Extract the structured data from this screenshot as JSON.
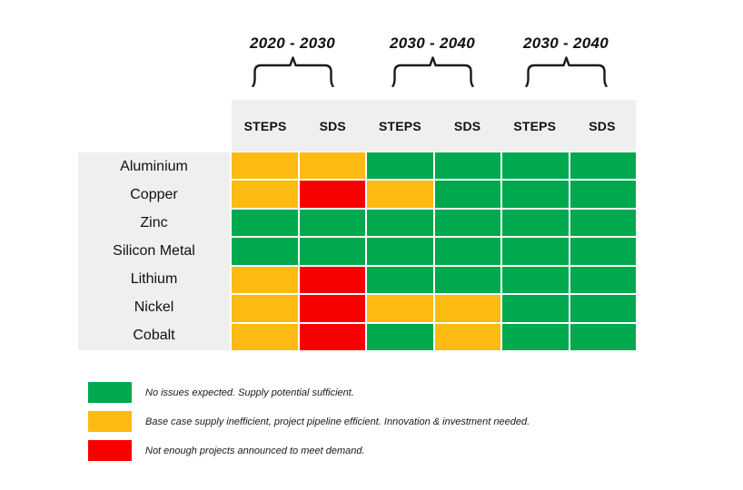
{
  "colors": {
    "green": "#00A94E",
    "yellow": "#FDBA12",
    "red": "#F80000",
    "band_gray": "#EFEFEF",
    "text": "#111111"
  },
  "period_headers": [
    "2020 - 2030",
    "2030 - 2040",
    "2030 - 2040"
  ],
  "scenario_headers": [
    "STEPS",
    "SDS",
    "STEPS",
    "SDS",
    "STEPS",
    "SDS"
  ],
  "table": {
    "rows": [
      {
        "label": "Aluminium",
        "cells": [
          "yellow",
          "yellow",
          "green",
          "green",
          "green",
          "green"
        ]
      },
      {
        "label": "Copper",
        "cells": [
          "yellow",
          "red",
          "yellow",
          "green",
          "green",
          "green"
        ]
      },
      {
        "label": "Zinc",
        "cells": [
          "green",
          "green",
          "green",
          "green",
          "green",
          "green"
        ]
      },
      {
        "label": "Silicon Metal",
        "cells": [
          "green",
          "green",
          "green",
          "green",
          "green",
          "green"
        ]
      },
      {
        "label": "Lithium",
        "cells": [
          "yellow",
          "red",
          "green",
          "green",
          "green",
          "green"
        ]
      },
      {
        "label": "Nickel",
        "cells": [
          "yellow",
          "red",
          "yellow",
          "yellow",
          "green",
          "green"
        ]
      },
      {
        "label": "Cobalt",
        "cells": [
          "yellow",
          "red",
          "green",
          "yellow",
          "green",
          "green"
        ]
      }
    ]
  },
  "legend": [
    {
      "color_key": "green",
      "text": "No issues expected. Supply potential sufficient."
    },
    {
      "color_key": "yellow",
      "text": "Base case supply inefficient, project pipeline efficient. Innovation & investment needed."
    },
    {
      "color_key": "red",
      "text": "Not enough projects announced to meet demand."
    }
  ],
  "chart_data": {
    "type": "heatmap",
    "title": "",
    "row_labels": [
      "Aluminium",
      "Copper",
      "Zinc",
      "Silicon Metal",
      "Lithium",
      "Nickel",
      "Cobalt"
    ],
    "column_groups": [
      {
        "period": "2020 - 2030",
        "scenarios": [
          "STEPS",
          "SDS"
        ]
      },
      {
        "period": "2030 - 2040",
        "scenarios": [
          "STEPS",
          "SDS"
        ]
      },
      {
        "period": "2030 - 2040",
        "scenarios": [
          "STEPS",
          "SDS"
        ]
      }
    ],
    "columns": [
      "STEPS",
      "SDS",
      "STEPS",
      "SDS",
      "STEPS",
      "SDS"
    ],
    "values": [
      [
        "yellow",
        "yellow",
        "green",
        "green",
        "green",
        "green"
      ],
      [
        "yellow",
        "red",
        "yellow",
        "green",
        "green",
        "green"
      ],
      [
        "green",
        "green",
        "green",
        "green",
        "green",
        "green"
      ],
      [
        "green",
        "green",
        "green",
        "green",
        "green",
        "green"
      ],
      [
        "yellow",
        "red",
        "green",
        "green",
        "green",
        "green"
      ],
      [
        "yellow",
        "red",
        "yellow",
        "yellow",
        "green",
        "green"
      ],
      [
        "yellow",
        "red",
        "green",
        "yellow",
        "green",
        "green"
      ]
    ],
    "value_meanings": {
      "green": "No issues expected. Supply potential sufficient.",
      "yellow": "Base case supply inefficient, project pipeline efficient. Innovation & investment needed.",
      "red": "Not enough projects announced to meet demand."
    },
    "legend_position": "bottom-left",
    "grid": false
  }
}
